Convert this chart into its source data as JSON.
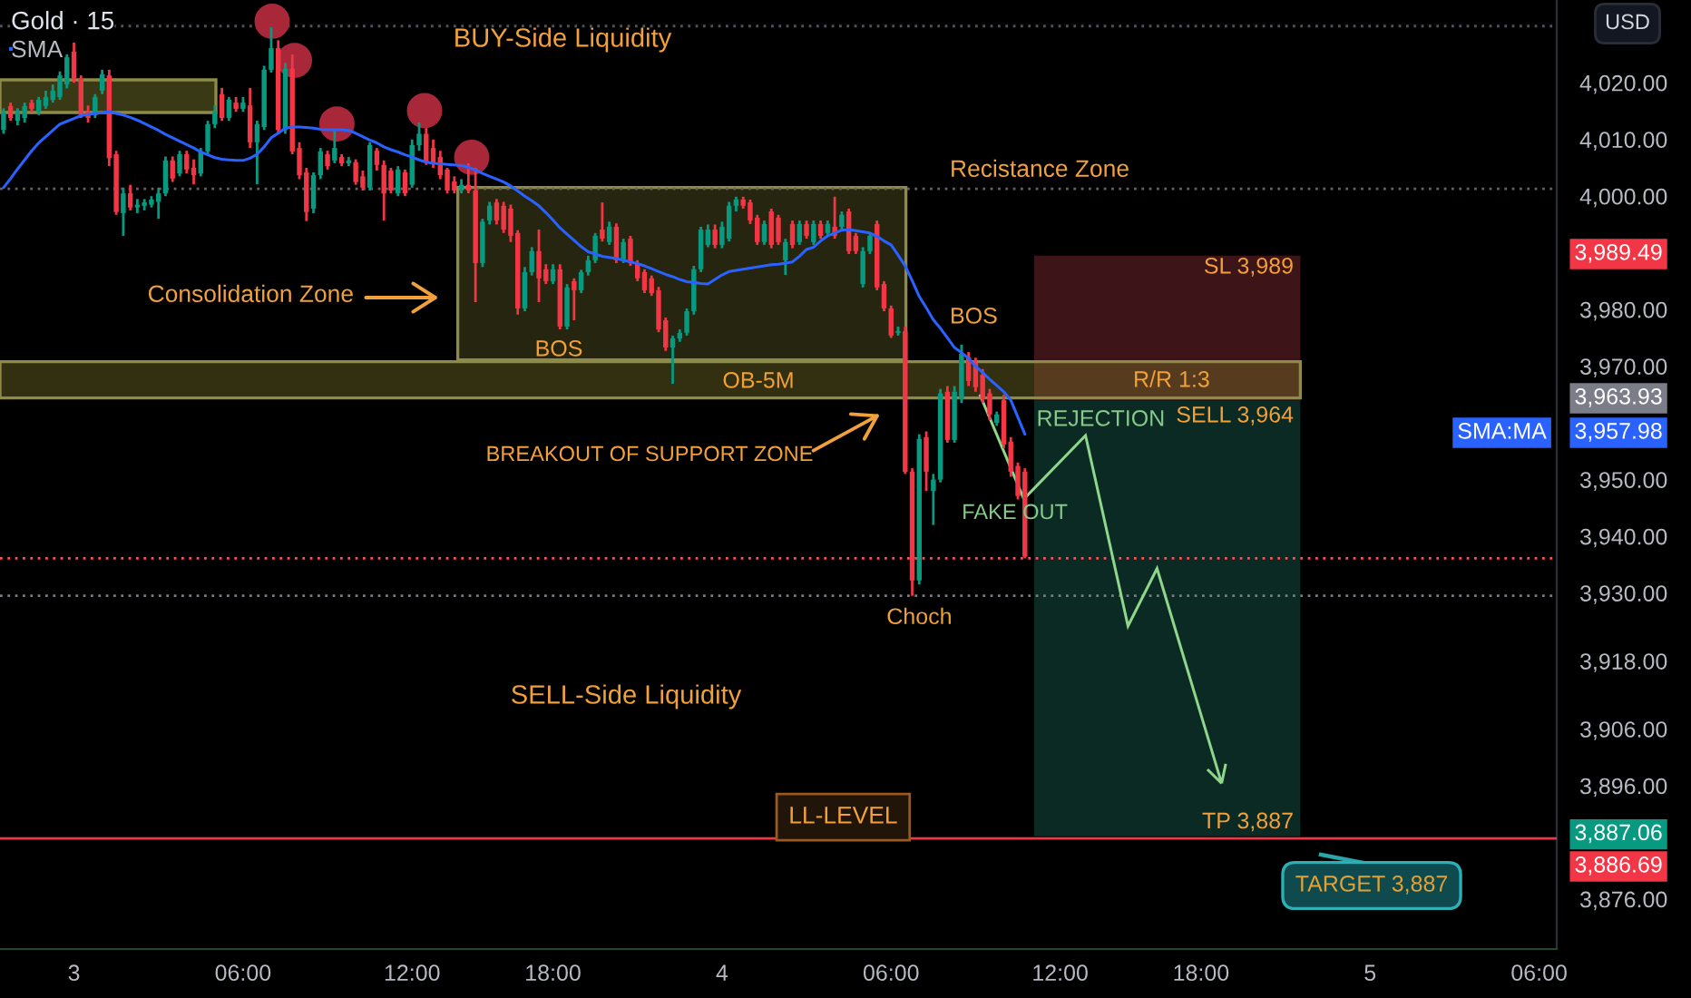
{
  "chart_data": {
    "type": "candlestick",
    "title": "Gold · 15",
    "ylabel": "USD",
    "legend": "top left",
    "categories": [
      null,
      null,
      null,
      null,
      null,
      null,
      null,
      null,
      null,
      null,
      "3",
      null,
      null,
      null,
      null,
      null,
      null,
      null,
      null,
      null,
      null,
      null,
      null,
      null,
      null,
      null,
      null,
      null,
      null,
      null,
      null,
      null,
      null,
      null,
      "06:00",
      null,
      null,
      null,
      null,
      null,
      null,
      null,
      null,
      null,
      null,
      null,
      null,
      null,
      null,
      null,
      null,
      null,
      null,
      null,
      null,
      null,
      null,
      null,
      "12:00",
      null,
      null,
      null,
      null,
      null,
      null,
      null,
      null,
      null,
      null,
      null,
      null,
      null,
      null,
      null,
      null,
      null,
      null,
      null,
      "18:00",
      null,
      null,
      null,
      null,
      null,
      null,
      null,
      null,
      null,
      null,
      null,
      null,
      null,
      null,
      null,
      null,
      null,
      null,
      null,
      null,
      null,
      null,
      null,
      "4",
      null,
      null,
      null,
      null,
      null,
      null,
      null,
      null,
      null,
      null,
      null,
      null,
      null,
      null,
      null,
      null,
      null,
      null,
      null,
      null,
      null,
      null,
      null,
      "06:00",
      null,
      null,
      null,
      null,
      null,
      null,
      null,
      null,
      null,
      null,
      null,
      null,
      null,
      null,
      null,
      null,
      null,
      null,
      null,
      null,
      null,
      null,
      null,
      "12:00",
      null,
      null,
      null,
      null,
      null,
      null,
      null,
      null,
      null,
      null,
      null,
      null,
      null,
      null,
      null,
      null,
      null,
      null,
      null,
      "18:00",
      null,
      null,
      null,
      null,
      null,
      null,
      null,
      null,
      null,
      null,
      null,
      null,
      null,
      null,
      null,
      null,
      null,
      null,
      null,
      null,
      null,
      null,
      null,
      "5",
      null,
      null,
      null,
      null,
      null,
      null,
      null,
      null,
      null,
      null,
      null,
      null,
      null,
      null,
      null,
      null,
      null,
      null,
      null,
      null,
      null,
      null,
      null,
      "06:00",
      null,
      null
    ],
    "ohlc": [
      [
        4011.7,
        4015.5,
        4011,
        4014.9
      ],
      [
        4015.9,
        4016.5,
        4013.3,
        4013.8
      ],
      [
        4013.3,
        4015.5,
        4012.5,
        4014.9
      ],
      [
        4013.8,
        4016.5,
        4013,
        4015.9
      ],
      [
        4016.5,
        4017,
        4014.8,
        4015.4
      ],
      [
        4014.9,
        4017.5,
        4014.3,
        4017
      ],
      [
        4015.9,
        4018.6,
        4015.4,
        4017.5
      ],
      [
        4017,
        4019.7,
        4016.5,
        4018.6
      ],
      [
        4017.5,
        4022,
        4017,
        4021.3
      ],
      [
        4019.7,
        4025,
        4019,
        4024.5
      ],
      [
        4025.5,
        4027.1,
        4020,
        4020.8
      ],
      [
        4020.7,
        4021.3,
        4013.8,
        4014.3
      ],
      [
        4015,
        4016,
        4013,
        4013.8
      ],
      [
        4014.3,
        4018,
        4013.8,
        4017.5
      ],
      [
        4018.6,
        4022.3,
        4018,
        4021.5
      ],
      [
        4021.3,
        4022.3,
        4005.3,
        4006.7
      ],
      [
        4007.4,
        4008,
        3996.7,
        3997.2
      ],
      [
        3997,
        4001.5,
        3993,
        4000.5
      ],
      [
        4000.5,
        4002,
        3997.5,
        3998
      ],
      [
        3998,
        3999.5,
        3997,
        3998.5
      ],
      [
        3998.3,
        3999.5,
        3997.5,
        3998.9
      ],
      [
        3998.5,
        4000,
        3998,
        3999.4
      ],
      [
        3999,
        4001.5,
        3996,
        4000.5
      ],
      [
        4000.5,
        4007,
        4000,
        4006.3
      ],
      [
        4006.3,
        4007,
        4002.5,
        4003.1
      ],
      [
        4004,
        4008,
        4003.5,
        4007.4
      ],
      [
        4007.4,
        4008,
        4004,
        4004.7
      ],
      [
        4005,
        4006.5,
        4002.1,
        4003.7
      ],
      [
        4004,
        4008.5,
        4003.5,
        4007.9
      ],
      [
        4007.9,
        4013.3,
        4007.4,
        4012.7
      ],
      [
        4012.7,
        4016,
        4012,
        4014.9
      ],
      [
        4018,
        4019.1,
        4013.3,
        4013.8
      ],
      [
        4013.8,
        4017.5,
        4013.3,
        4017
      ],
      [
        4016.5,
        4017.5,
        4014.9,
        4015.4
      ],
      [
        4015.4,
        4017.5,
        4014.9,
        4016.5
      ],
      [
        4016,
        4019.1,
        4008.5,
        4009.5
      ],
      [
        4009.5,
        4013.3,
        4002.1,
        4012.7
      ],
      [
        4012.2,
        4023,
        4011.7,
        4022.3
      ],
      [
        4022.3,
        4029.8,
        4021.8,
        4026.1
      ],
      [
        4026.1,
        4027.5,
        4011,
        4011.7
      ],
      [
        4011.7,
        4023.5,
        4011,
        4022.5
      ],
      [
        4022.5,
        4025,
        4007.4,
        4007.9
      ],
      [
        4008.5,
        4009.5,
        4003,
        4003.7
      ],
      [
        4004.2,
        4005,
        3995.6,
        3997.2
      ],
      [
        3997.8,
        4004.2,
        3997,
        4003.7
      ],
      [
        4003.7,
        4008.5,
        4003,
        4007.9
      ],
      [
        4007.4,
        4008,
        4004.7,
        4005.3
      ],
      [
        4006.3,
        4011.7,
        4005.8,
        4008.5
      ],
      [
        4006.9,
        4007.4,
        4005.3,
        4005.8
      ],
      [
        4005.8,
        4006.9,
        4005.3,
        4006.3
      ],
      [
        4006,
        4006.5,
        4002,
        4002.5
      ],
      [
        4003.5,
        4004.5,
        4001,
        4001.5
      ],
      [
        4001.5,
        4009.5,
        4001,
        4009
      ],
      [
        4008,
        4008.5,
        4004.5,
        4005.5
      ],
      [
        4005.5,
        4006.3,
        3995.7,
        4000.5
      ],
      [
        4004.5,
        4005,
        4000.5,
        4001
      ],
      [
        4000.5,
        4005.3,
        4000,
        4004.7
      ],
      [
        4004.2,
        4004.7,
        4000,
        4000.5
      ],
      [
        4002,
        4010,
        4001.5,
        4009
      ],
      [
        4009,
        4013,
        4008,
        4011
      ],
      [
        4011,
        4012,
        4005.5,
        4006
      ],
      [
        4008.5,
        4010,
        4005,
        4005.8
      ],
      [
        4006.9,
        4008,
        4003,
        4003.7
      ],
      [
        4004.7,
        4005,
        4000.5,
        4001
      ],
      [
        4002.6,
        4003.5,
        4000.5,
        4001
      ],
      [
        4001,
        4003,
        4000.5,
        4002
      ],
      [
        4002,
        4005.8,
        4000.5,
        4001
      ],
      [
        4001,
        4005,
        3981.3,
        3988.2
      ],
      [
        3988.2,
        3996,
        3987.5,
        3995.5
      ],
      [
        3995.7,
        3999,
        3995,
        3998.3
      ],
      [
        3998.9,
        3999.5,
        3995,
        3995.7
      ],
      [
        3998.3,
        3999,
        3993.5,
        3994.1
      ],
      [
        3997.8,
        3998.5,
        3991.9,
        3993
      ],
      [
        3993.5,
        3994,
        3979.1,
        3980.2
      ],
      [
        3980.2,
        3987.5,
        3979.7,
        3986.6
      ],
      [
        3986.6,
        3991,
        3986,
        3990.3
      ],
      [
        3990.3,
        3994.1,
        3981.3,
        3985.5
      ],
      [
        3987.1,
        3988,
        3984.5,
        3985
      ],
      [
        3985,
        3988,
        3984.5,
        3987.1
      ],
      [
        3987.1,
        3988,
        3976.5,
        3977
      ],
      [
        3977,
        3984.5,
        3976.5,
        3983.9
      ],
      [
        3985,
        3985.5,
        3978.1,
        3983.4
      ],
      [
        3983.4,
        3987,
        3982.9,
        3986.6
      ],
      [
        3986.6,
        3989.5,
        3986,
        3988.7
      ],
      [
        3988.7,
        3993.5,
        3988.2,
        3993
      ],
      [
        3994.1,
        3998.9,
        3992,
        3992.5
      ],
      [
        3991.9,
        3995.5,
        3991.4,
        3994.6
      ],
      [
        3994.6,
        3995.2,
        3988.2,
        3988.7
      ],
      [
        3988.7,
        3992.5,
        3988.2,
        3991.9
      ],
      [
        3992.5,
        3993,
        3987.7,
        3988.2
      ],
      [
        3988.2,
        3988.7,
        3985,
        3985.5
      ],
      [
        3986.6,
        3987.1,
        3982.9,
        3983.4
      ],
      [
        3985.5,
        3986,
        3982.4,
        3982.9
      ],
      [
        3983.4,
        3984,
        3976,
        3976.5
      ],
      [
        3978.1,
        3978.6,
        3972.7,
        3973.3
      ],
      [
        3973.3,
        3975.4,
        3966.9,
        3974.9
      ],
      [
        3974.9,
        3976.5,
        3974.3,
        3975.9
      ],
      [
        3975.9,
        3980.2,
        3975.4,
        3979.7
      ],
      [
        3979.7,
        3987.7,
        3979.1,
        3987.1
      ],
      [
        3987.1,
        3994.6,
        3986.6,
        3994.1
      ],
      [
        3991.4,
        3995,
        3991,
        3994.1
      ],
      [
        3994.1,
        3995,
        3990.8,
        3991.4
      ],
      [
        3991.4,
        3995.5,
        3990.8,
        3994.6
      ],
      [
        3992.5,
        3999,
        3992,
        3998.3
      ],
      [
        3998.3,
        3999.9,
        3997.3,
        3999.4
      ],
      [
        3999.4,
        3999.9,
        3997.8,
        3998.3
      ],
      [
        3998.9,
        3999.4,
        3995.1,
        3995.7
      ],
      [
        3996.2,
        3996.7,
        3991.4,
        3991.9
      ],
      [
        3991.9,
        3995.7,
        3991.4,
        3995.1
      ],
      [
        3997.3,
        3997.8,
        3990.8,
        3991.4
      ],
      [
        3996.2,
        3996.7,
        3991.4,
        3991.9
      ],
      [
        3988.7,
        3992.5,
        3986.1,
        3991.9
      ],
      [
        3995.1,
        3995.7,
        3990.8,
        3991.4
      ],
      [
        3991.9,
        3995.7,
        3991.4,
        3995.1
      ],
      [
        3995.1,
        3995.7,
        3992.5,
        3993
      ],
      [
        3991.9,
        3995.7,
        3991.4,
        3995.1
      ],
      [
        3995.1,
        3995.7,
        3992.5,
        3993
      ],
      [
        3993.5,
        3995.7,
        3993,
        3995.1
      ],
      [
        3994.6,
        3999.9,
        3992.5,
        3993
      ],
      [
        3994.6,
        3997.3,
        3994.1,
        3996.7
      ],
      [
        3997.3,
        3997.8,
        3989.8,
        3990.3
      ],
      [
        3993,
        3993.5,
        3989.8,
        3990.3
      ],
      [
        3984.5,
        3991,
        3983.9,
        3990.3
      ],
      [
        3990.3,
        3993.5,
        3989.8,
        3993
      ],
      [
        3995.1,
        3995.7,
        3983.4,
        3983.9
      ],
      [
        3984.5,
        3985,
        3979.7,
        3980.2
      ],
      [
        3980.2,
        3980.7,
        3975,
        3975.4
      ],
      [
        3975.9,
        3977,
        3975.4,
        3976.2
      ],
      [
        3976.2,
        3977,
        3951,
        3951.4
      ],
      [
        3951.4,
        3952,
        3929.5,
        3932.2
      ],
      [
        3932.2,
        3958,
        3931.5,
        3957.2
      ],
      [
        3957.5,
        3958.5,
        3948,
        3951.4
      ],
      [
        3948,
        3951,
        3942,
        3950
      ],
      [
        3950,
        3966,
        3949.5,
        3965.2
      ],
      [
        3965.5,
        3966.5,
        3956.5,
        3957
      ],
      [
        3957,
        3966.5,
        3956.5,
        3965.5
      ],
      [
        3964.2,
        3973.8,
        3963.5,
        3972.2
      ],
      [
        3971.6,
        3972.5,
        3966.5,
        3967.4
      ],
      [
        3970.6,
        3971.5,
        3965.5,
        3966.3
      ],
      [
        3968.5,
        3969.5,
        3963.5,
        3964.2
      ],
      [
        3965.2,
        3966,
        3960.5,
        3961.5
      ],
      [
        3960,
        3962,
        3959.5,
        3961.5
      ],
      [
        3964,
        3965,
        3955.5,
        3956.2
      ],
      [
        3956.7,
        3957.5,
        3950.5,
        3951.4
      ],
      [
        3952.4,
        3953,
        3946.5,
        3947.1
      ],
      [
        3951.4,
        3952,
        3936.1,
        3936.4
      ],
      null,
      null,
      null,
      null,
      null,
      null,
      null,
      null,
      null,
      null,
      null,
      null,
      null,
      null,
      null,
      null,
      null,
      null,
      null,
      null,
      null,
      null,
      null,
      null,
      null,
      null,
      null,
      null,
      null,
      null,
      null,
      null,
      null,
      null,
      null,
      null,
      null,
      null,
      null,
      null,
      null,
      null,
      null,
      null,
      null,
      null,
      null,
      null,
      null,
      null,
      null,
      null,
      null,
      null,
      null,
      null,
      null,
      null,
      null,
      null,
      null,
      null,
      null,
      null,
      null,
      null,
      null,
      null,
      null,
      null,
      null,
      null,
      null,
      null,
      null
    ],
    "colors": [
      "#089981",
      "#f23645",
      "#089981",
      "#089981",
      "#f23645",
      "#089981",
      "#089981",
      "#089981",
      "#089981",
      "#089981",
      "#f23645",
      "#f23645",
      "#f23645",
      "#089981",
      "#089981",
      "#f23645",
      "#f23645",
      "#089981",
      "#f23645",
      "#089981",
      "#089981",
      "#089981",
      "#089981",
      "#089981",
      "#f23645",
      "#089981",
      "#f23645",
      "#f23645",
      "#089981",
      "#089981",
      "#089981",
      "#f23645",
      "#089981",
      "#f23645",
      "#089981",
      "#f23645",
      "#089981",
      "#089981",
      "#089981",
      "#f23645",
      "#089981",
      "#f23645",
      "#f23645",
      "#f23645",
      "#089981",
      "#089981",
      "#f23645",
      "#089981",
      "#f23645",
      "#089981",
      "#f23645",
      "#f23645",
      "#089981",
      "#f23645",
      "#f23645",
      "#f23645",
      "#089981",
      "#f23645",
      "#089981",
      "#089981",
      "#f23645",
      "#f23645",
      "#f23645",
      "#f23645",
      "#f23645",
      "#089981",
      "#f23645",
      "#f23645",
      "#089981",
      "#089981",
      "#f23645",
      "#f23645",
      "#f23645",
      "#f23645",
      "#089981",
      "#089981",
      "#f23645",
      "#f23645",
      "#089981",
      "#f23645",
      "#089981",
      "#f23645",
      "#089981",
      "#089981",
      "#089981",
      "#f23645",
      "#089981",
      "#f23645",
      "#089981",
      "#f23645",
      "#f23645",
      "#f23645",
      "#f23645",
      "#f23645",
      "#f23645",
      "#089981",
      "#089981",
      "#089981",
      "#089981",
      "#089981",
      "#089981",
      "#f23645",
      "#089981",
      "#089981",
      "#089981",
      "#f23645",
      "#f23645",
      "#f23645",
      "#089981",
      "#f23645",
      "#f23645",
      "#089981",
      "#f23645",
      "#089981",
      "#f23645",
      "#089981",
      "#f23645",
      "#089981",
      "#f23645",
      "#089981",
      "#f23645",
      "#f23645",
      "#089981",
      "#089981",
      "#f23645",
      "#f23645",
      "#f23645",
      "#089981",
      "#f23645",
      "#f23645",
      "#089981",
      "#f23645",
      "#089981",
      "#089981",
      "#f23645",
      "#089981",
      "#089981",
      "#f23645",
      "#f23645",
      "#f23645",
      "#f23645",
      "#089981",
      "#f23645",
      "#f23645",
      "#f23645",
      "#f23645",
      null,
      null,
      null,
      null,
      null,
      null,
      null,
      null,
      null,
      null,
      null,
      null,
      null,
      null,
      null,
      null,
      null,
      null,
      null,
      null,
      null,
      null,
      null,
      null,
      null,
      null,
      null,
      null,
      null,
      null,
      null,
      null,
      null,
      null,
      null,
      null,
      null,
      null,
      null,
      null,
      null,
      null,
      null,
      null,
      null,
      null,
      null,
      null,
      null,
      null,
      null,
      null,
      null,
      null,
      null,
      null,
      null,
      null,
      null,
      null,
      null,
      null,
      null,
      null,
      null,
      null,
      null,
      null,
      null,
      null,
      null,
      null,
      null,
      null,
      null
    ],
    "series": [
      {
        "name": "SMA",
        "type": "line",
        "color": "#2962ff",
        "values": [
          4001.5,
          4003.1,
          4004.8,
          4006.4,
          4008.0,
          4009.4,
          4010.5,
          4011.6,
          4012.7,
          4013.2,
          4013.7,
          4014.2,
          4014.4,
          4014.6,
          4014.7,
          4014.9,
          4014.6,
          4014.3,
          4013.9,
          4013.4,
          4012.8,
          4012.2,
          4011.6,
          4010.9,
          4010.3,
          4009.7,
          4009.1,
          4008.5,
          4007.8,
          4007.3,
          4006.8,
          4006.5,
          4006.4,
          4006.3,
          4006.3,
          4006.7,
          4007.4,
          4008.7,
          4010.3,
          4011.1,
          4012.0,
          4012.2,
          4012.2,
          4012.1,
          4012.0,
          4011.8,
          4011.7,
          4011.7,
          4011.7,
          4011.6,
          4011.1,
          4010.5,
          4009.9,
          4009.4,
          4008.7,
          4008.2,
          4007.8,
          4007.3,
          4006.9,
          4006.4,
          4006.0,
          4005.8,
          4005.7,
          4005.6,
          4005.5,
          4005.4,
          4005.1,
          4004.6,
          4004.0,
          4003.5,
          4003.0,
          4002.5,
          4001.8,
          4000.9,
          4000.0,
          3999.2,
          3998.3,
          3997.1,
          3995.8,
          3994.4,
          3993.3,
          3992.2,
          3991.1,
          3990.2,
          3989.8,
          3989.4,
          3989.2,
          3989.0,
          3988.7,
          3988.4,
          3988.1,
          3987.7,
          3987.2,
          3986.7,
          3986.2,
          3985.8,
          3985.3,
          3984.9,
          3984.8,
          3984.6,
          3984.5,
          3985.3,
          3986.1,
          3986.7,
          3986.9,
          3987.1,
          3987.3,
          3987.5,
          3987.7,
          3987.9,
          3988.0,
          3988.2,
          3988.4,
          3989.4,
          3990.6,
          3991.0,
          3992.1,
          3993.0,
          3993.5,
          3994.0,
          3994.1,
          3993.9,
          3993.7,
          3993.5,
          3992.9,
          3992.1,
          3991.4,
          3989.6,
          3987.7,
          3985.1,
          3982.3,
          3980.3,
          3978.2,
          3976.7,
          3975.0,
          3973.3,
          3972.4,
          3971.4,
          3970.0,
          3968.9,
          3967.7,
          3966.6,
          3965.5,
          3964.0,
          3961.0,
          3958.0,
          null,
          null,
          null,
          null,
          null,
          null,
          null,
          null,
          null,
          null,
          null,
          null,
          null,
          null,
          null,
          null,
          null,
          null,
          null,
          null,
          null,
          null,
          null,
          null,
          null,
          null,
          null,
          null,
          null,
          null,
          null,
          null,
          null,
          null,
          null,
          null,
          null,
          null,
          null,
          null,
          null,
          null,
          null,
          null,
          null,
          null,
          null,
          null,
          null,
          null,
          null,
          null,
          null,
          null,
          null,
          null,
          null,
          null,
          null,
          null,
          null,
          null,
          null,
          null,
          null,
          null,
          null,
          null,
          null,
          null,
          null,
          null,
          null,
          null,
          null
        ]
      }
    ],
    "ylim": [
      3867.2,
      4034.6
    ],
    "yticks": [
      {
        "value": 4020,
        "label": "4,020.00"
      },
      {
        "value": 4010,
        "label": "4,010.00"
      },
      {
        "value": 4000,
        "label": "4,000.00"
      },
      {
        "value": 3980,
        "label": "3,980.00"
      },
      {
        "value": 3970,
        "label": "3,970.00"
      },
      {
        "value": 3950,
        "label": "3,950.00"
      },
      {
        "value": 3940,
        "label": "3,940.00"
      },
      {
        "value": 3930,
        "label": "3,930.00"
      },
      {
        "value": 3918,
        "label": "3,918.00"
      },
      {
        "value": 3906,
        "label": "3,906.00"
      },
      {
        "value": 3896,
        "label": "3,896.00"
      },
      {
        "value": 3876,
        "label": "3,876.00"
      }
    ],
    "ref_lines": [
      {
        "axis": "y",
        "value": 4030,
        "color": "#50535e",
        "line_style": "dotted"
      },
      {
        "axis": "y",
        "value": 4001.3,
        "color": "#6a5f66",
        "line_style": "dotted"
      },
      {
        "axis": "y",
        "value": 3936.1,
        "color": "#f7525f",
        "line_style": "dotted"
      },
      {
        "axis": "y",
        "value": 3929.5,
        "color": "#787b86",
        "line_style": "dotted"
      },
      {
        "axis": "y",
        "value": 3886.69,
        "label": "LL-LEVEL",
        "color": "#f23645",
        "line_style": "solid"
      }
    ],
    "annotations": [
      "BUY-Side Liquidity",
      "Recistance Zone",
      "Consolidation Zone",
      "BOS",
      "OB-5M",
      "BOS",
      "SL 3,989",
      "R/R 1:3",
      "SELL 3,964",
      "REJECTION",
      "BREAKOUT OF SUPPORT ZONE",
      "FAKE OUT",
      "Choch",
      "SELL-Side Liquidity",
      "TP 3,887",
      "TARGET 3,887",
      "3,989.49",
      "3,963.93",
      "3,957.98",
      "SMA:MA",
      "3,887.06",
      "3,886.69"
    ]
  }
}
